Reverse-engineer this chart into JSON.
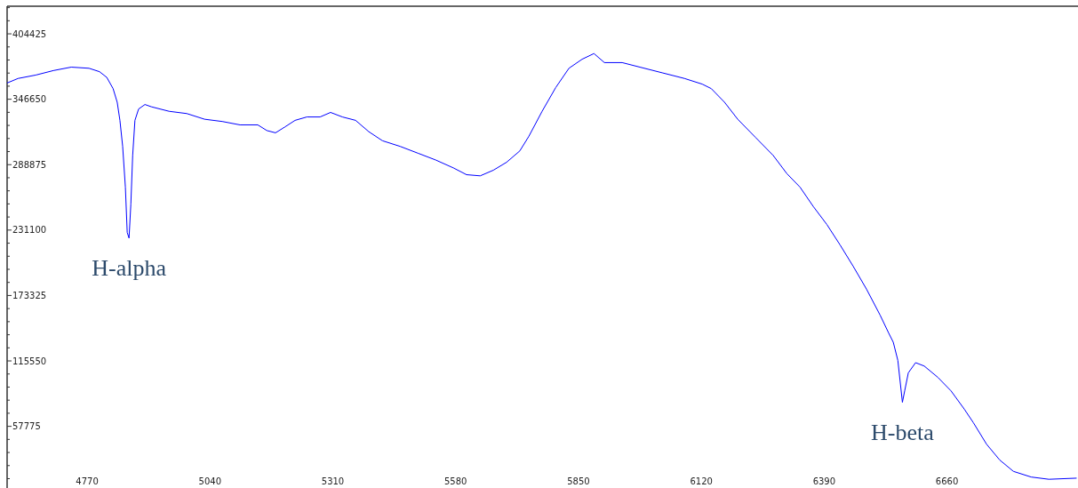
{
  "chart_data": {
    "type": "line",
    "x": [
      4594,
      4618,
      4657,
      4696,
      4735,
      4774,
      4797,
      4813,
      4827,
      4836,
      4842,
      4848,
      4854,
      4858,
      4862,
      4866,
      4870,
      4875,
      4883,
      4897,
      4911,
      4950,
      4989,
      5028,
      5067,
      5106,
      5145,
      5165,
      5184,
      5204,
      5227,
      5253,
      5282,
      5305,
      5331,
      5360,
      5389,
      5419,
      5458,
      5497,
      5536,
      5575,
      5604,
      5634,
      5663,
      5692,
      5721,
      5741,
      5770,
      5800,
      5829,
      5858,
      5884,
      5907,
      5946,
      5985,
      6034,
      6083,
      6122,
      6142,
      6171,
      6200,
      6239,
      6278,
      6308,
      6337,
      6366,
      6396,
      6425,
      6454,
      6483,
      6513,
      6532,
      6542,
      6552,
      6562,
      6567,
      6575,
      6591,
      6610,
      6640,
      6669,
      6698,
      6718,
      6747,
      6776,
      6806,
      6845,
      6884,
      6945
    ],
    "series": [
      {
        "color": "#0000ff",
        "values": [
          361000,
          365000,
          368000,
          372000,
          375000,
          374000,
          371000,
          366000,
          356000,
          344000,
          328000,
          305000,
          269000,
          229000,
          224000,
          254000,
          297000,
          328000,
          338000,
          342000,
          340000,
          336000,
          334000,
          329000,
          327000,
          324000,
          324000,
          319000,
          317000,
          322000,
          328000,
          331000,
          331000,
          335000,
          331000,
          328000,
          318000,
          310000,
          305000,
          299000,
          293000,
          286000,
          280000,
          279000,
          284000,
          291000,
          301000,
          314000,
          336000,
          357000,
          374000,
          382000,
          387000,
          379000,
          379000,
          375000,
          370000,
          365000,
          360000,
          356000,
          344000,
          329000,
          313000,
          297000,
          281000,
          269000,
          252000,
          236000,
          218000,
          199000,
          179000,
          156000,
          140000,
          132000,
          116000,
          79000,
          89000,
          105000,
          114000,
          111000,
          101000,
          89000,
          73000,
          61000,
          42000,
          28000,
          18000,
          13000,
          11000,
          12000
        ]
      }
    ],
    "xlim": [
      4594,
      6948
    ],
    "ylim": [
      3300,
      428800
    ],
    "xticks": [
      4770,
      5040,
      5310,
      5580,
      5850,
      6120,
      6390,
      6660
    ],
    "yticks": [
      {
        "value": 11555,
        "label": null
      },
      {
        "value": 23110,
        "label": null
      },
      {
        "value": 34665,
        "label": null
      },
      {
        "value": 46220,
        "label": null
      },
      57775,
      {
        "value": 69330,
        "label": null
      },
      {
        "value": 80885,
        "label": null
      },
      {
        "value": 92440,
        "label": null
      },
      {
        "value": 103995,
        "label": null
      },
      115550,
      {
        "value": 127105,
        "label": null
      },
      {
        "value": 138660,
        "label": null
      },
      {
        "value": 150215,
        "label": null
      },
      {
        "value": 161770,
        "label": null
      },
      173325,
      {
        "value": 184880,
        "label": null
      },
      {
        "value": 196435,
        "label": null
      },
      {
        "value": 207990,
        "label": null
      },
      {
        "value": 219545,
        "label": null
      },
      231100,
      {
        "value": 242655,
        "label": null
      },
      {
        "value": 254210,
        "label": null
      },
      {
        "value": 265765,
        "label": null
      },
      {
        "value": 277320,
        "label": null
      },
      288875,
      {
        "value": 300430,
        "label": null
      },
      {
        "value": 311985,
        "label": null
      },
      {
        "value": 323540,
        "label": null
      },
      {
        "value": 335095,
        "label": null
      },
      346650,
      {
        "value": 358205,
        "label": null
      },
      {
        "value": 369760,
        "label": null
      },
      {
        "value": 381315,
        "label": null
      },
      {
        "value": 392870,
        "label": null
      },
      404425,
      {
        "value": 415980,
        "label": null
      },
      {
        "value": 427535,
        "label": null
      }
    ],
    "annotations": [
      {
        "text": "H-alpha",
        "x": 4862,
        "y": 224000
      },
      {
        "text": "H-beta",
        "x": 6562,
        "y": 79000
      }
    ],
    "grid": false,
    "marker": "none",
    "line_style": "solid"
  }
}
